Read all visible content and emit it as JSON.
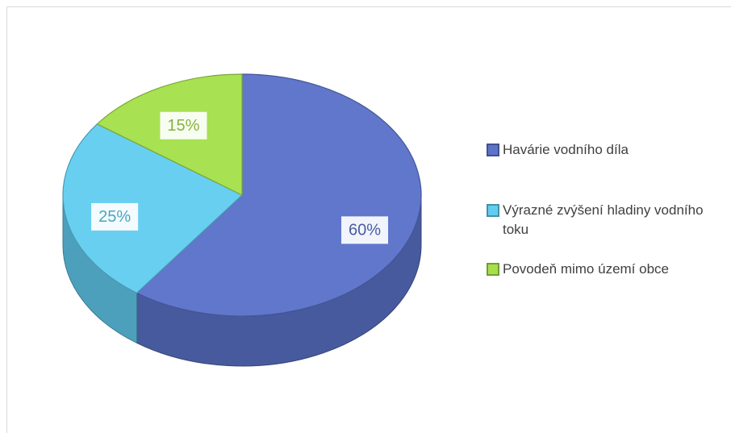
{
  "chart_data": {
    "type": "pie",
    "categories": [
      "Havárie vodního díla",
      "Výrazné zvýšení hladiny vodního toku",
      "Povodeň mimo území obce"
    ],
    "values": [
      60,
      25,
      15
    ],
    "value_labels": [
      "60%",
      "25%",
      "15%"
    ],
    "colors": [
      "#5b73c9",
      "#63cdf0",
      "#a5e04b"
    ],
    "legend": "right"
  }
}
